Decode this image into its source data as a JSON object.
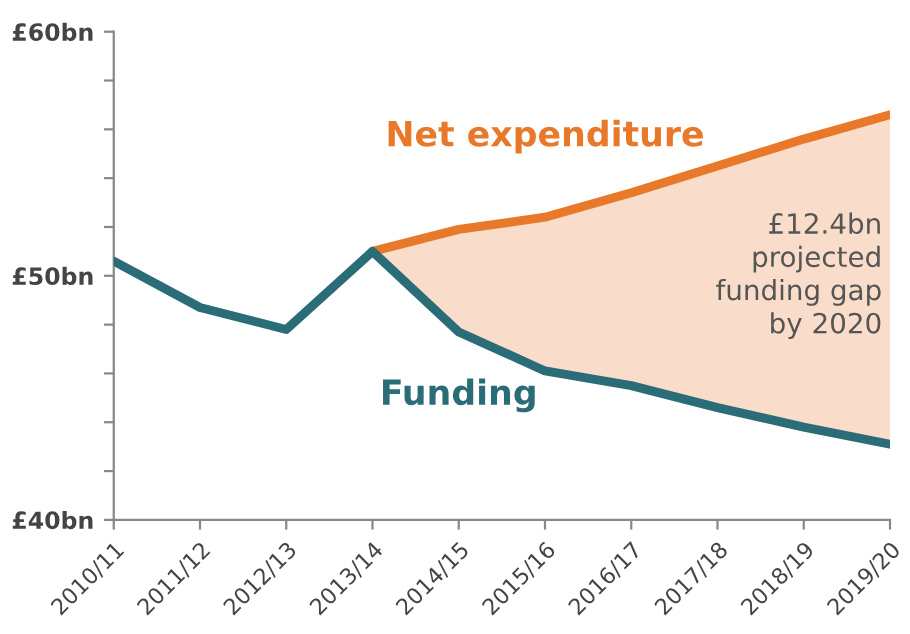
{
  "chart_data": {
    "type": "line",
    "categories": [
      "2010/11",
      "2011/12",
      "2012/13",
      "2013/14",
      "2014/15",
      "2015/16",
      "2016/17",
      "2017/18",
      "2018/19",
      "2019/20"
    ],
    "series": [
      {
        "name": "Net expenditure",
        "color": "#e8792b",
        "values": [
          null,
          null,
          null,
          51.0,
          51.9,
          52.4,
          53.4,
          54.5,
          55.6,
          56.6
        ],
        "lower": [
          null,
          null,
          null,
          51.0,
          47.7,
          46.1,
          45.5,
          44.6,
          43.8,
          43.1
        ],
        "upper": [
          null,
          null,
          null,
          51.0,
          51.9,
          52.4,
          53.4,
          54.5,
          55.6,
          56.6
        ]
      },
      {
        "name": "Funding",
        "color": "#2a6c78",
        "values": [
          50.6,
          48.7,
          47.8,
          51.0,
          47.7,
          46.1,
          45.5,
          44.6,
          43.8,
          43.1
        ]
      }
    ],
    "ylim": [
      40,
      60
    ],
    "yticks": [
      {
        "value": 40,
        "label": "£40bn"
      },
      {
        "value": 42,
        "label": null
      },
      {
        "value": 44,
        "label": null
      },
      {
        "value": 46,
        "label": null
      },
      {
        "value": 48,
        "label": null
      },
      {
        "value": 50,
        "label": "£50bn"
      },
      {
        "value": 52,
        "label": null
      },
      {
        "value": 54,
        "label": null
      },
      {
        "value": 56,
        "label": null
      },
      {
        "value": 58,
        "label": null
      },
      {
        "value": 60,
        "label": "£60bn"
      }
    ],
    "annotations": [
      "£12.4bn\nprojected\nfunding gap\nby 2020"
    ],
    "grid": false,
    "legend": false,
    "marker": "none",
    "line_style": "solid"
  }
}
